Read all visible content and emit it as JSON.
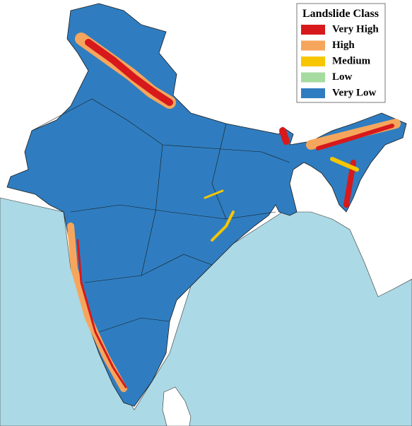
{
  "legend": {
    "title": "Landslide Class",
    "items": [
      {
        "label": "Very High",
        "color": "#d7191c"
      },
      {
        "label": "High",
        "color": "#f6a65c"
      },
      {
        "label": "Medium",
        "color": "#f7c600"
      },
      {
        "label": "Low",
        "color": "#a6dba0"
      },
      {
        "label": "Very Low",
        "color": "#2f7dc0"
      }
    ]
  }
}
